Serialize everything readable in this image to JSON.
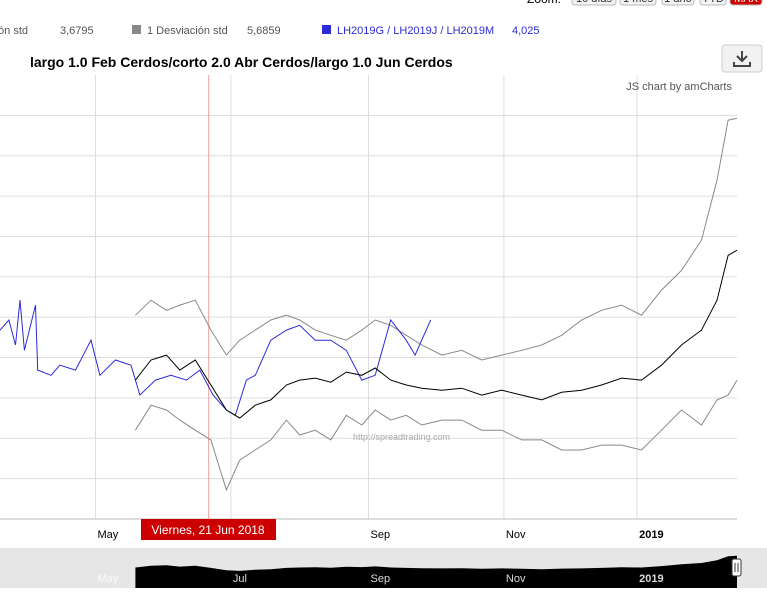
{
  "zoom": {
    "label": "Zoom:",
    "buttons": [
      "10 días",
      "1 mes",
      "1 año",
      "YTD",
      "MAX"
    ]
  },
  "chart_data": {
    "type": "line",
    "title": "largo 1.0 Feb Cerdos/corto 2.0 Abr Cerdos/largo 1.0 Jun Cerdos",
    "credit": "JS chart by amCharts",
    "watermark": "http://spreadtrading.com",
    "cursor": {
      "x": 172,
      "label": "Viernes, 21 Jun 2018"
    },
    "xlim": [
      78,
      410
    ],
    "xticks": [
      {
        "value": 121,
        "label": "May"
      },
      {
        "value": 182,
        "label": "Jul"
      },
      {
        "value": 244,
        "label": "Sep"
      },
      {
        "value": 305,
        "label": "Nov"
      },
      {
        "value": 365,
        "label": "2019"
      }
    ],
    "ylim": [
      0,
      11
    ],
    "ygrid": [
      1,
      2,
      3,
      4,
      5,
      6,
      7,
      8,
      9,
      10
    ],
    "series": [
      {
        "name": "ación std",
        "legend_value": "3,6795",
        "color": "#888888",
        "x": [
          139,
          146,
          153,
          159,
          166,
          173,
          180,
          186,
          193,
          200,
          207,
          213,
          220,
          227,
          234,
          241,
          247,
          254,
          261,
          268,
          277,
          286,
          295,
          304,
          313,
          322,
          331,
          340,
          349,
          358,
          367,
          376,
          385,
          394,
          401,
          406,
          410
        ],
        "values": [
          2.2,
          2.82,
          2.7,
          2.45,
          2.2,
          1.96,
          0.72,
          1.46,
          1.71,
          1.96,
          2.45,
          2.08,
          2.2,
          1.96,
          2.57,
          2.33,
          2.7,
          2.45,
          2.57,
          2.33,
          2.45,
          2.45,
          2.2,
          2.2,
          1.96,
          1.96,
          1.71,
          1.71,
          1.83,
          1.83,
          1.71,
          2.2,
          2.7,
          2.33,
          2.95,
          3.07,
          3.44
        ]
      },
      {
        "name": "1 Desviación std",
        "legend_value": "5,6859",
        "color": "#888888",
        "x": [
          139,
          146,
          153,
          159,
          166,
          173,
          180,
          186,
          193,
          200,
          207,
          213,
          220,
          227,
          234,
          241,
          247,
          254,
          261,
          268,
          277,
          286,
          295,
          304,
          313,
          322,
          331,
          340,
          349,
          358,
          367,
          376,
          385,
          394,
          401,
          406,
          410
        ],
        "values": [
          5.05,
          5.42,
          5.17,
          5.3,
          5.42,
          4.68,
          4.06,
          4.43,
          4.68,
          4.93,
          5.05,
          4.93,
          4.68,
          4.55,
          4.43,
          4.68,
          4.93,
          4.8,
          4.55,
          4.31,
          4.06,
          4.18,
          3.94,
          4.06,
          4.18,
          4.31,
          4.55,
          4.93,
          5.17,
          5.3,
          5.05,
          5.67,
          6.16,
          6.91,
          8.39,
          9.88,
          9.93
        ]
      },
      {
        "name": "LH2019G / LH2019J / LH2019M",
        "legend_value": "4,025",
        "color": "#2b2bd9",
        "x": [
          78,
          82,
          85,
          87,
          89,
          94,
          95,
          101,
          105,
          112,
          119,
          123,
          130,
          137,
          141,
          148,
          155,
          162,
          168,
          174,
          180,
          184,
          189,
          193,
          200,
          207,
          213,
          220,
          227,
          234,
          241,
          247,
          254,
          261,
          265,
          272
        ],
        "values": [
          4.68,
          4.93,
          4.31,
          5.42,
          4.18,
          5.3,
          3.69,
          3.56,
          3.81,
          3.69,
          4.43,
          3.56,
          3.94,
          3.81,
          3.07,
          3.44,
          3.56,
          3.44,
          3.69,
          3.07,
          2.7,
          2.57,
          3.44,
          3.56,
          4.43,
          4.68,
          4.8,
          4.43,
          4.43,
          4.18,
          3.44,
          3.56,
          4.93,
          4.43,
          4.06,
          4.93
        ]
      },
      {
        "color": "#000000",
        "x": [
          139,
          146,
          153,
          159,
          166,
          173,
          180,
          186,
          193,
          200,
          207,
          213,
          220,
          227,
          234,
          241,
          247,
          254,
          261,
          268,
          277,
          286,
          295,
          304,
          313,
          322,
          331,
          340,
          349,
          358,
          367,
          376,
          385,
          394,
          401,
          406,
          410
        ],
        "values": [
          3.44,
          3.94,
          4.06,
          3.69,
          3.94,
          3.32,
          2.7,
          2.5,
          2.82,
          2.95,
          3.32,
          3.44,
          3.49,
          3.39,
          3.64,
          3.56,
          3.74,
          3.44,
          3.32,
          3.24,
          3.19,
          3.24,
          3.07,
          3.19,
          3.07,
          2.95,
          3.14,
          3.19,
          3.32,
          3.49,
          3.44,
          3.81,
          4.31,
          4.68,
          5.42,
          6.53,
          6.66
        ]
      }
    ]
  }
}
